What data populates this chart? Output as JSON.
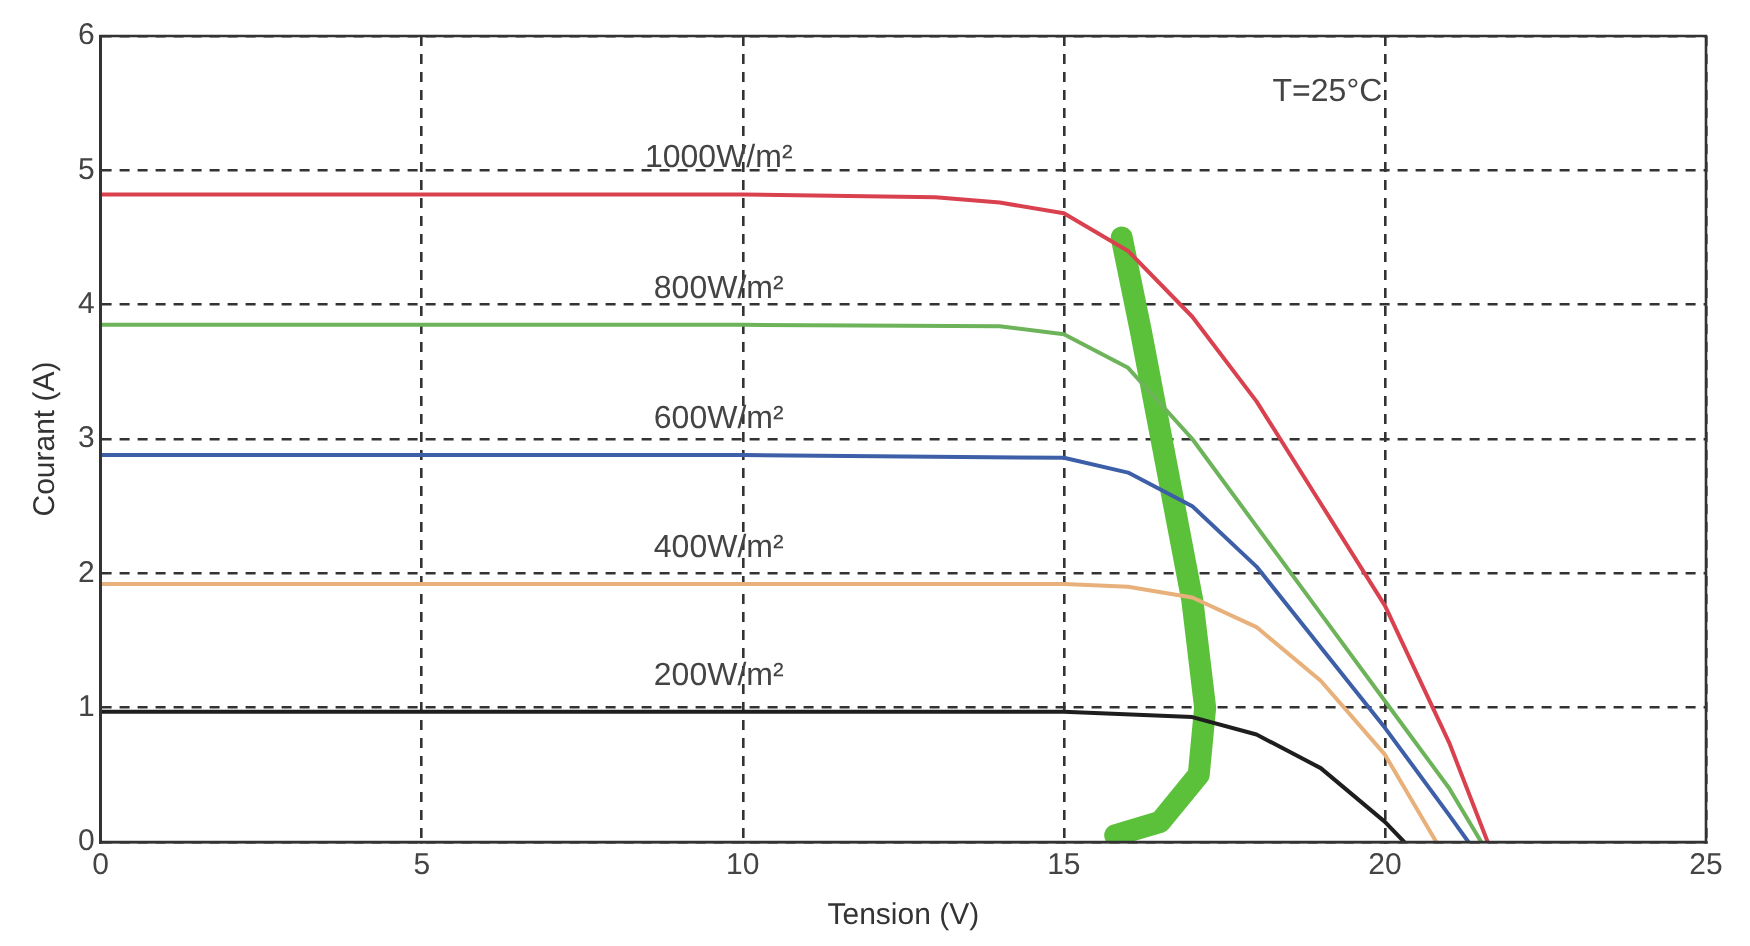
{
  "chart_data": {
    "type": "line",
    "xlabel": "Tension (V)",
    "ylabel": "Courant (A)",
    "xlim": [
      0,
      25
    ],
    "ylim": [
      0,
      6
    ],
    "xticks": [
      0,
      5,
      10,
      15,
      20,
      25
    ],
    "yticks": [
      0,
      1,
      2,
      3,
      4,
      5,
      6
    ],
    "grid": true,
    "legend": false,
    "marker": "none",
    "line_style": "solid",
    "annotations": [
      "T=25°C"
    ],
    "series": [
      {
        "name": "1000W/m²",
        "color": "#d9414f",
        "x": [
          0,
          5,
          10,
          13,
          14,
          15,
          16,
          17,
          18,
          19,
          20,
          21,
          21.6
        ],
        "values": [
          4.82,
          4.82,
          4.82,
          4.8,
          4.76,
          4.68,
          4.4,
          3.91,
          3.28,
          2.52,
          1.76,
          0.74,
          0
        ]
      },
      {
        "name": "800W/m²",
        "color": "#6cb35a",
        "x": [
          0,
          5,
          10,
          14,
          15,
          16,
          17,
          18,
          19,
          20,
          21,
          21.5
        ],
        "values": [
          3.85,
          3.85,
          3.85,
          3.84,
          3.78,
          3.53,
          3.0,
          2.35,
          1.7,
          1.05,
          0.4,
          0
        ]
      },
      {
        "name": "600W/m²",
        "color": "#3d5fa8",
        "x": [
          0,
          5,
          10,
          15,
          16,
          17,
          18,
          19,
          20,
          21,
          21.3
        ],
        "values": [
          2.88,
          2.88,
          2.88,
          2.86,
          2.75,
          2.5,
          2.05,
          1.45,
          0.85,
          0.2,
          0
        ]
      },
      {
        "name": "400W/m²",
        "color": "#e8b07a",
        "x": [
          0,
          5,
          10,
          15,
          16,
          17,
          18,
          19,
          20,
          20.8
        ],
        "values": [
          1.92,
          1.92,
          1.92,
          1.92,
          1.9,
          1.82,
          1.6,
          1.2,
          0.65,
          0
        ]
      },
      {
        "name": "200W/m²",
        "color": "#1e1e1e",
        "x": [
          0,
          5,
          10,
          15,
          17,
          18,
          19,
          20,
          20.3
        ],
        "values": [
          0.97,
          0.97,
          0.97,
          0.97,
          0.93,
          0.8,
          0.55,
          0.15,
          0
        ]
      },
      {
        "color": "#5cc13a",
        "x": [
          15.9,
          16.2,
          16.6,
          17.0,
          17.2,
          17.1,
          16.5,
          15.8
        ],
        "values": [
          4.5,
          3.8,
          2.8,
          1.8,
          1.0,
          0.5,
          0.15,
          0.05
        ]
      }
    ]
  }
}
